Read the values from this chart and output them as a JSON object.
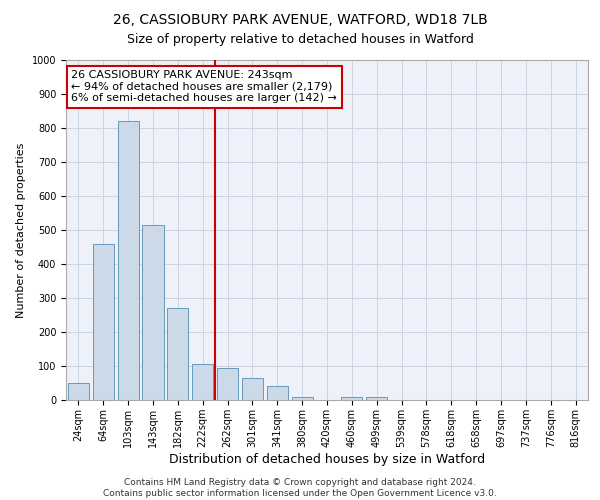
{
  "title1": "26, CASSIOBURY PARK AVENUE, WATFORD, WD18 7LB",
  "title2": "Size of property relative to detached houses in Watford",
  "xlabel": "Distribution of detached houses by size in Watford",
  "ylabel": "Number of detached properties",
  "bar_labels": [
    "24sqm",
    "64sqm",
    "103sqm",
    "143sqm",
    "182sqm",
    "222sqm",
    "262sqm",
    "301sqm",
    "341sqm",
    "380sqm",
    "420sqm",
    "460sqm",
    "499sqm",
    "539sqm",
    "578sqm",
    "618sqm",
    "658sqm",
    "697sqm",
    "737sqm",
    "776sqm",
    "816sqm"
  ],
  "bar_values": [
    50,
    460,
    820,
    515,
    270,
    105,
    95,
    65,
    40,
    10,
    0,
    10,
    10,
    0,
    0,
    0,
    0,
    0,
    0,
    0,
    0
  ],
  "bar_color": "#ccd9e8",
  "bar_edge_color": "#6699bb",
  "vline_x": 6.0,
  "vline_color": "#cc0000",
  "annotation_text": "26 CASSIOBURY PARK AVENUE: 243sqm\n← 94% of detached houses are smaller (2,179)\n6% of semi-detached houses are larger (142) →",
  "annotation_box_color": "#ffffff",
  "annotation_box_edge": "#cc0000",
  "ylim": [
    0,
    1000
  ],
  "yticks": [
    0,
    100,
    200,
    300,
    400,
    500,
    600,
    700,
    800,
    900,
    1000
  ],
  "footer": "Contains HM Land Registry data © Crown copyright and database right 2024.\nContains public sector information licensed under the Open Government Licence v3.0.",
  "bg_color": "#ffffff",
  "plot_bg_color": "#eef2f8",
  "grid_color": "#c8d4e4",
  "title1_fontsize": 10,
  "title2_fontsize": 9,
  "xlabel_fontsize": 9,
  "ylabel_fontsize": 8,
  "tick_fontsize": 7,
  "annotation_fontsize": 8,
  "footer_fontsize": 6.5
}
